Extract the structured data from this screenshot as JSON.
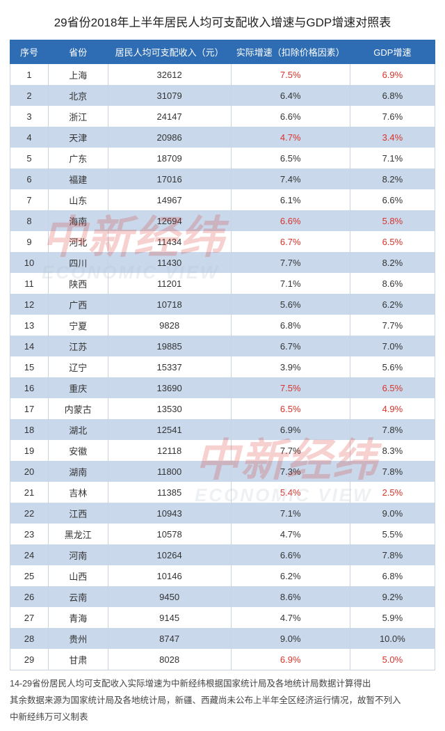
{
  "title": "29省份2018年上半年居民人均可支配收入增速与GDP增速对照表",
  "headers": {
    "idx": "序号",
    "province": "省份",
    "income": "居民人均可支配收入（元）",
    "real_growth": "实际增速（扣除价格因素）",
    "gdp_growth": "GDP增速"
  },
  "columns": {
    "widths_pct": {
      "idx": 9,
      "province": 14,
      "income": 29,
      "real_growth": 28,
      "gdp_growth": 20
    }
  },
  "colors": {
    "header_bg": "#2e6cb4",
    "header_fg": "#ffffff",
    "row_even_bg": "#c9d8eb",
    "row_odd_bg": "#ffffff",
    "border": "#c8d4e2",
    "text": "#333333",
    "highlight_red": "#d9332a",
    "watermark_red": "#d9332a",
    "watermark_grey": "#b7c2cf"
  },
  "typography": {
    "title_fontsize": 17,
    "header_fontsize": 13,
    "cell_fontsize": 13,
    "footnote_fontsize": 12.5
  },
  "rows": [
    {
      "idx": 1,
      "province": "上海",
      "income": "32612",
      "real": "7.5%",
      "gdp": "6.9%",
      "red": true
    },
    {
      "idx": 2,
      "province": "北京",
      "income": "31079",
      "real": "6.4%",
      "gdp": "6.8%",
      "red": false
    },
    {
      "idx": 3,
      "province": "浙江",
      "income": "24147",
      "real": "6.6%",
      "gdp": "7.6%",
      "red": false
    },
    {
      "idx": 4,
      "province": "天津",
      "income": "20986",
      "real": "4.7%",
      "gdp": "3.4%",
      "red": true
    },
    {
      "idx": 5,
      "province": "广东",
      "income": "18709",
      "real": "6.5%",
      "gdp": "7.1%",
      "red": false
    },
    {
      "idx": 6,
      "province": "福建",
      "income": "17016",
      "real": "7.4%",
      "gdp": "8.2%",
      "red": false
    },
    {
      "idx": 7,
      "province": "山东",
      "income": "14967",
      "real": "6.1%",
      "gdp": "6.6%",
      "red": false
    },
    {
      "idx": 8,
      "province": "海南",
      "income": "12694",
      "real": "6.6%",
      "gdp": "5.8%",
      "red": true
    },
    {
      "idx": 9,
      "province": "河北",
      "income": "11434",
      "real": "6.7%",
      "gdp": "6.5%",
      "red": true
    },
    {
      "idx": 10,
      "province": "四川",
      "income": "11430",
      "real": "7.7%",
      "gdp": "8.2%",
      "red": false
    },
    {
      "idx": 11,
      "province": "陕西",
      "income": "11201",
      "real": "7.1%",
      "gdp": "8.6%",
      "red": false
    },
    {
      "idx": 12,
      "province": "广西",
      "income": "10718",
      "real": "5.6%",
      "gdp": "6.2%",
      "red": false
    },
    {
      "idx": 13,
      "province": "宁夏",
      "income": "9828",
      "real": "6.8%",
      "gdp": "7.7%",
      "red": false
    },
    {
      "idx": 14,
      "province": "江苏",
      "income": "19885",
      "real": "6.7%",
      "gdp": "7.0%",
      "red": false
    },
    {
      "idx": 15,
      "province": "辽宁",
      "income": "15337",
      "real": "3.9%",
      "gdp": "5.6%",
      "red": false
    },
    {
      "idx": 16,
      "province": "重庆",
      "income": "13690",
      "real": "7.5%",
      "gdp": "6.5%",
      "red": true
    },
    {
      "idx": 17,
      "province": "内蒙古",
      "income": "13530",
      "real": "6.5%",
      "gdp": "4.9%",
      "red": true
    },
    {
      "idx": 18,
      "province": "湖北",
      "income": "12541",
      "real": "6.9%",
      "gdp": "7.8%",
      "red": false
    },
    {
      "idx": 19,
      "province": "安徽",
      "income": "12118",
      "real": "7.7%",
      "gdp": "8.3%",
      "red": false
    },
    {
      "idx": 20,
      "province": "湖南",
      "income": "11800",
      "real": "7.3%",
      "gdp": "7.8%",
      "red": false
    },
    {
      "idx": 21,
      "province": "吉林",
      "income": "11385",
      "real": "5.4%",
      "gdp": "2.5%",
      "red": true
    },
    {
      "idx": 22,
      "province": "江西",
      "income": "10943",
      "real": "7.1%",
      "gdp": "9.0%",
      "red": false
    },
    {
      "idx": 23,
      "province": "黑龙江",
      "income": "10578",
      "real": "4.7%",
      "gdp": "5.5%",
      "red": false
    },
    {
      "idx": 24,
      "province": "河南",
      "income": "10264",
      "real": "6.6%",
      "gdp": "7.8%",
      "red": false
    },
    {
      "idx": 25,
      "province": "山西",
      "income": "10146",
      "real": "6.2%",
      "gdp": "6.8%",
      "red": false
    },
    {
      "idx": 26,
      "province": "云南",
      "income": "9450",
      "real": "8.6%",
      "gdp": "9.2%",
      "red": false
    },
    {
      "idx": 27,
      "province": "青海",
      "income": "9145",
      "real": "4.7%",
      "gdp": "5.9%",
      "red": false
    },
    {
      "idx": 28,
      "province": "贵州",
      "income": "8747",
      "real": "9.0%",
      "gdp": "10.0%",
      "red": false
    },
    {
      "idx": 29,
      "province": "甘肃",
      "income": "8028",
      "real": "6.9%",
      "gdp": "5.0%",
      "red": true
    }
  ],
  "footnotes": [
    "14-29省份居民人均可支配收入实际增速为中新经纬根据国家统计局及各地统计局数据计算得出",
    "其余数据来源为国家统计局及各地统计局，新疆、西藏尚未公布上半年全区经济运行情况，故暂不列入",
    "中新经纬万可义制表"
  ],
  "watermark": {
    "cn": "中新经纬",
    "en": "ECONOMIC VIEW"
  }
}
